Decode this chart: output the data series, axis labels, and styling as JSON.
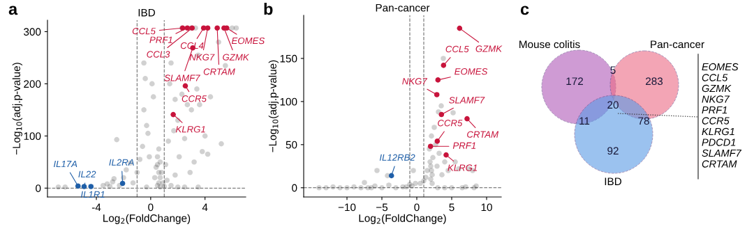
{
  "chart_data": [
    {
      "type": "scatter",
      "title": "IBD",
      "xlabel": "Log$_{2}$(FoldChange)",
      "ylabel": "−Log$_{10}$(adj.p-value)",
      "xlim": [
        -7.6,
        7.0
      ],
      "ylim": [
        -17,
        322
      ],
      "xticks": [
        -4,
        0,
        4
      ],
      "yticks": [
        0,
        100,
        200,
        300
      ],
      "marker": "circle",
      "legend": false,
      "grid": false,
      "series": [
        {
          "color": "#000000",
          "x": [
            -6.8,
            -6.3,
            -3.5,
            -3.2,
            -3.0,
            -2.8,
            -2.7,
            -2.5,
            -2.3,
            -2.0,
            -1.8,
            -1.5,
            -1.3,
            -1.0,
            -0.8,
            -0.6,
            -0.5,
            -0.4,
            -0.5,
            -0.3,
            -0.2,
            -0.1,
            0.1,
            0.2,
            0.3,
            0.4,
            0.5,
            0.6,
            0.7,
            0.8,
            0.9,
            0.5,
            1.0,
            1.2,
            1.3,
            1.4,
            1.5,
            1.7,
            1.8,
            2.0,
            2.1,
            2.3,
            2.5,
            2.7,
            2.9,
            3.0,
            3.2,
            3.3,
            3.4,
            3.5,
            3.6,
            3.8,
            4.0,
            4.2,
            4.4,
            5.0,
            5.2,
            5.5,
            6.0,
            6.3,
            3.0,
            2.3,
            1.5,
            2.0,
            -0.3,
            0.7,
            2.5,
            3.5,
            1.8,
            1.1,
            0.6,
            0.6,
            0.7,
            0.5
          ],
          "values": [
            2,
            2,
            5,
            8,
            3,
            12,
            18,
            93,
            5,
            20,
            35,
            48,
            10,
            30,
            55,
            80,
            150,
            210,
            240,
            120,
            105,
            60,
            200,
            175,
            20,
            40,
            60,
            75,
            50,
            30,
            10,
            5,
            3,
            15,
            90,
            200,
            240,
            110,
            170,
            130,
            60,
            180,
            95,
            160,
            30,
            150,
            50,
            307,
            190,
            255,
            160,
            70,
            100,
            65,
            175,
            280,
            85,
            235,
            307,
            307,
            307,
            307,
            5,
            2,
            2,
            2,
            2,
            2,
            25,
            45,
            10,
            30,
            20,
            45
          ]
        },
        {
          "color": "#c8143c",
          "x": [
            2.35,
            2.7,
            3.05,
            3.9,
            4.2,
            4.9,
            5.4,
            5.6,
            3.1,
            2.55,
            1.66
          ],
          "values": [
            307,
            307,
            307,
            307,
            307,
            307,
            307,
            307,
            269,
            196,
            141
          ]
        },
        {
          "color": "#1f5fa8",
          "x": [
            -5.35,
            -4.9,
            -4.4,
            -2.07
          ],
          "values": [
            4,
            3,
            3,
            9
          ]
        }
      ],
      "ref_lines": [
        {
          "axis": "x",
          "value": -1,
          "color": "#808080",
          "line_style": "dashed"
        },
        {
          "axis": "x",
          "value": 1,
          "color": "#808080",
          "line_style": "dashed"
        },
        {
          "axis": "y",
          "value": 0,
          "color": "#808080",
          "line_style": "dashed"
        }
      ],
      "annotations": [
        "a",
        {
          "text": "CCL5",
          "x": 2.35,
          "y": 307
        },
        {
          "text": "PRF1",
          "x": 2.7,
          "y": 307
        },
        {
          "text": "CCL3",
          "x": 3.05,
          "y": 307
        },
        {
          "text": "CCL4",
          "x": 3.9,
          "y": 307
        },
        {
          "text": "NKG7",
          "x": 4.2,
          "y": 307
        },
        {
          "text": "CRTAM",
          "x": 4.9,
          "y": 307
        },
        {
          "text": "GZMK",
          "x": 5.4,
          "y": 307
        },
        {
          "text": "EOMES",
          "x": 5.6,
          "y": 307
        },
        {
          "text": "SLAMF7",
          "x": 3.1,
          "y": 269
        },
        {
          "text": "CCR5",
          "x": 2.55,
          "y": 196
        },
        {
          "text": "KLRG1",
          "x": 1.66,
          "y": 141
        },
        {
          "text": "IL17A",
          "x": -5.35,
          "y": 4
        },
        {
          "text": "IL22",
          "x": -4.9,
          "y": 3
        },
        {
          "text": "IL1R1",
          "x": -4.4,
          "y": 3
        },
        {
          "text": "IL2RA",
          "x": -2.07,
          "y": 9
        }
      ]
    },
    {
      "type": "scatter",
      "title": "Pan-cancer",
      "xlabel": "Log$_{2}$(FoldChange)",
      "ylabel": "−Log$_{10}$(adj.p-value)",
      "xlim": [
        -16.2,
        12.1
      ],
      "ylim": [
        -10.7,
        200
      ],
      "xticks": [
        {
          "value": -10,
          "label": "−10"
        },
        {
          "value": -5,
          "label": "−5"
        },
        0,
        5,
        10
      ],
      "yticks": [
        0,
        50,
        100,
        150
      ],
      "marker": "circle",
      "legend": false,
      "grid": false,
      "series": [
        {
          "color": "#000000",
          "x": [
            -14,
            -13,
            -12,
            -11,
            -10,
            -9,
            -8,
            -7.5,
            -7,
            -6,
            -5.7,
            -5,
            -4.2,
            -4,
            -2,
            -1,
            -0.5,
            0.5,
            1,
            1.3,
            1.5,
            1.8,
            2,
            2.1,
            2.2,
            2.3,
            2.5,
            2.7,
            2.9,
            3.1,
            3.2,
            3.5,
            3.6,
            3.8,
            4,
            4.5,
            5.2,
            5.5,
            6,
            7.5,
            8,
            8.5,
            6.5,
            5,
            4,
            3,
            -0.2,
            -1.5,
            -3,
            -6.5,
            7,
            8.2,
            -0.7,
            2.0,
            2.1,
            1.9,
            2.2
          ],
          "values": [
            0,
            0,
            1,
            0,
            0,
            1,
            0,
            6,
            0,
            2,
            20,
            0,
            14,
            3,
            1,
            4,
            20,
            5,
            8,
            12,
            20,
            45,
            25,
            60,
            15,
            35,
            70,
            50,
            25,
            88,
            40,
            95,
            15,
            150,
            30,
            20,
            87,
            30,
            22,
            22,
            20,
            2,
            0,
            0,
            0,
            0,
            5,
            1,
            0,
            0,
            1,
            0,
            2,
            10,
            20,
            30,
            5
          ]
        },
        {
          "color": "#c8143c",
          "x": [
            6.13,
            3.83,
            3.03,
            2.87,
            3.53,
            7.2,
            2.93,
            1.97,
            4.2
          ],
          "values": [
            185,
            142,
            125,
            108,
            85,
            80,
            54,
            48,
            38
          ]
        },
        {
          "color": "#1f5fa8",
          "x": [
            -3.63
          ],
          "values": [
            14
          ]
        }
      ],
      "ref_lines": [
        {
          "axis": "x",
          "value": -1,
          "color": "#808080",
          "line_style": "dashed"
        },
        {
          "axis": "x",
          "value": 1,
          "color": "#808080",
          "line_style": "dashed"
        },
        {
          "axis": "y",
          "value": 0,
          "color": "#808080",
          "line_style": "dashed"
        }
      ],
      "annotations": [
        "b",
        {
          "text": "GZMK",
          "x": 6.13,
          "y": 185
        },
        {
          "text": "CCL5",
          "x": 3.83,
          "y": 142
        },
        {
          "text": "EOMES",
          "x": 3.03,
          "y": 125
        },
        {
          "text": "NKG7",
          "x": 2.87,
          "y": 108
        },
        {
          "text": "SLAMF7",
          "x": 3.53,
          "y": 85
        },
        {
          "text": "CRTAM",
          "x": 7.2,
          "y": 80
        },
        {
          "text": "CCR5",
          "x": 2.93,
          "y": 54
        },
        {
          "text": "PRF1",
          "x": 1.97,
          "y": 48
        },
        {
          "text": "KLRG1",
          "x": 4.2,
          "y": 38
        },
        {
          "text": "IL12RB2",
          "x": -3.63,
          "y": 14
        }
      ]
    },
    {
      "type": "other",
      "categories": [
        "Mouse colitis",
        "Pan-cancer",
        "IBD"
      ],
      "colors": [
        "#b05ab8",
        "#ec6a84",
        "#5a9ae6"
      ],
      "annotations": [
        "c",
        "172",
        "5",
        "283",
        "20",
        "11",
        "78",
        "92",
        "EOMES\nCCL5\nGZMK\nNKG7\nPRF1\nCCR5\nKLRG1\nPDCD1\nSLAMF7\nCRTAM"
      ]
    }
  ]
}
